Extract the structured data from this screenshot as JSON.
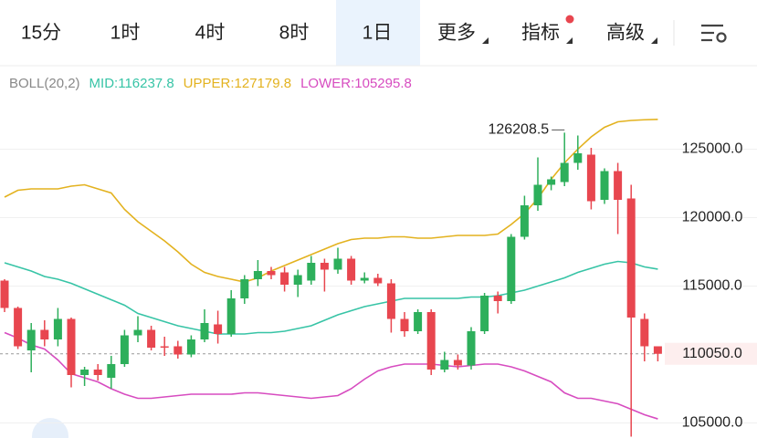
{
  "toolbar": {
    "tabs": [
      "15分",
      "1时",
      "4时",
      "8时",
      "1日",
      "更多",
      "指标",
      "高级"
    ],
    "selected": 4
  },
  "chart_data": {
    "type": "candlestick",
    "indicator": "BOLL(20,2)",
    "open": [
      115400,
      113400,
      110300,
      111800,
      111100,
      112600,
      108500,
      108900,
      108300,
      109300,
      111400,
      111800,
      110600,
      110600,
      110000,
      111100,
      112200,
      111500,
      114100,
      115500,
      116100,
      116000,
      115100,
      115400,
      116700,
      116200,
      117000,
      115400,
      115600,
      115200,
      112600,
      111700,
      113100,
      108900,
      109600,
      109200,
      111700,
      114300,
      113900,
      118600,
      120900,
      122400,
      122600,
      124000,
      124600,
      121300,
      123400,
      121400,
      112600,
      110600
    ],
    "high": [
      115500,
      113500,
      112300,
      112500,
      113400,
      112700,
      109100,
      109300,
      109900,
      111800,
      112800,
      112100,
      111300,
      111000,
      111400,
      113300,
      113200,
      114700,
      115800,
      116900,
      116400,
      116400,
      116200,
      117200,
      117000,
      117800,
      117200,
      116000,
      115900,
      115500,
      113100,
      113300,
      113300,
      110200,
      110000,
      112000,
      114500,
      114600,
      118800,
      121600,
      124400,
      123000,
      126208.5,
      126000,
      125100,
      123600,
      124000,
      122400,
      113000,
      110600
    ],
    "low": [
      113100,
      110400,
      108700,
      110600,
      110600,
      107600,
      107700,
      108100,
      107500,
      109100,
      110900,
      110300,
      109900,
      109700,
      109800,
      110900,
      110800,
      111300,
      113700,
      115000,
      115500,
      114600,
      114200,
      115100,
      114600,
      115900,
      115100,
      115200,
      115000,
      111600,
      111300,
      111500,
      108500,
      108700,
      108900,
      108900,
      111500,
      113000,
      113700,
      118400,
      120500,
      122000,
      122300,
      123500,
      120600,
      121000,
      118800,
      104000,
      109500,
      109500
    ],
    "close": [
      113400,
      110600,
      111800,
      111100,
      112600,
      108500,
      108900,
      108500,
      109300,
      111400,
      111800,
      110500,
      110500,
      110000,
      111100,
      112300,
      111500,
      114100,
      115500,
      116100,
      115800,
      115100,
      115800,
      116700,
      116200,
      117000,
      115400,
      115600,
      115200,
      112600,
      111700,
      113100,
      108900,
      109600,
      109200,
      111700,
      114300,
      113900,
      118600,
      120900,
      122400,
      122800,
      124000,
      124700,
      121200,
      123400,
      121300,
      112700,
      110600,
      110050
    ],
    "up_color": "#2daf5b",
    "down_color": "#e8464f",
    "series": [
      {
        "name": "MID:116237.8",
        "color": "#37c4a6",
        "values": [
          116700,
          116400,
          116100,
          115700,
          115500,
          115200,
          114800,
          114400,
          114000,
          113600,
          113000,
          112700,
          112400,
          112100,
          111900,
          111700,
          111500,
          111500,
          111500,
          111600,
          111600,
          111700,
          111900,
          112100,
          112500,
          112900,
          113200,
          113500,
          113700,
          113900,
          114100,
          114100,
          114100,
          114100,
          114100,
          114200,
          114200,
          114300,
          114500,
          114700,
          115000,
          115300,
          115600,
          116000,
          116300,
          116600,
          116800,
          116700,
          116400,
          116237.8
        ]
      },
      {
        "name": "UPPER:127179.8",
        "color": "#e3b21f",
        "values": [
          121500,
          122000,
          122100,
          122100,
          122100,
          122300,
          122400,
          122100,
          121800,
          120600,
          119700,
          119000,
          118300,
          117500,
          116600,
          116000,
          115700,
          115500,
          115300,
          115600,
          116100,
          116500,
          116900,
          117300,
          117700,
          118100,
          118400,
          118500,
          118500,
          118600,
          118600,
          118500,
          118500,
          118600,
          118700,
          118700,
          118700,
          118800,
          119500,
          120300,
          121400,
          122800,
          124000,
          125000,
          125900,
          126600,
          127000,
          127100,
          127150,
          127179.8
        ]
      },
      {
        "name": "LOWER:105295.8",
        "color": "#d74cc0",
        "values": [
          111600,
          111200,
          110700,
          110400,
          109600,
          108600,
          108300,
          108000,
          107500,
          107100,
          106800,
          106800,
          106900,
          107000,
          107100,
          107100,
          107100,
          107100,
          107200,
          107200,
          107100,
          107000,
          106900,
          106800,
          106900,
          107000,
          107500,
          108200,
          108800,
          109100,
          109300,
          109300,
          109300,
          109200,
          109100,
          109200,
          109300,
          109300,
          109100,
          108800,
          108400,
          108000,
          107200,
          106800,
          106800,
          106600,
          106400,
          106000,
          105600,
          105295.8
        ]
      }
    ],
    "annotations": [
      {
        "text": "126208.5",
        "index": 42
      }
    ],
    "last_price": {
      "value": 110050,
      "label": "110050.0"
    },
    "ylim": [
      103900,
      128700
    ],
    "yticks": [
      {
        "value": 105000,
        "label": "105000.0"
      },
      {
        "value": 115000,
        "label": "115000.0"
      },
      {
        "value": 120000,
        "label": "120000.0"
      },
      {
        "value": 125000,
        "label": "125000.0"
      }
    ],
    "grid": true
  }
}
